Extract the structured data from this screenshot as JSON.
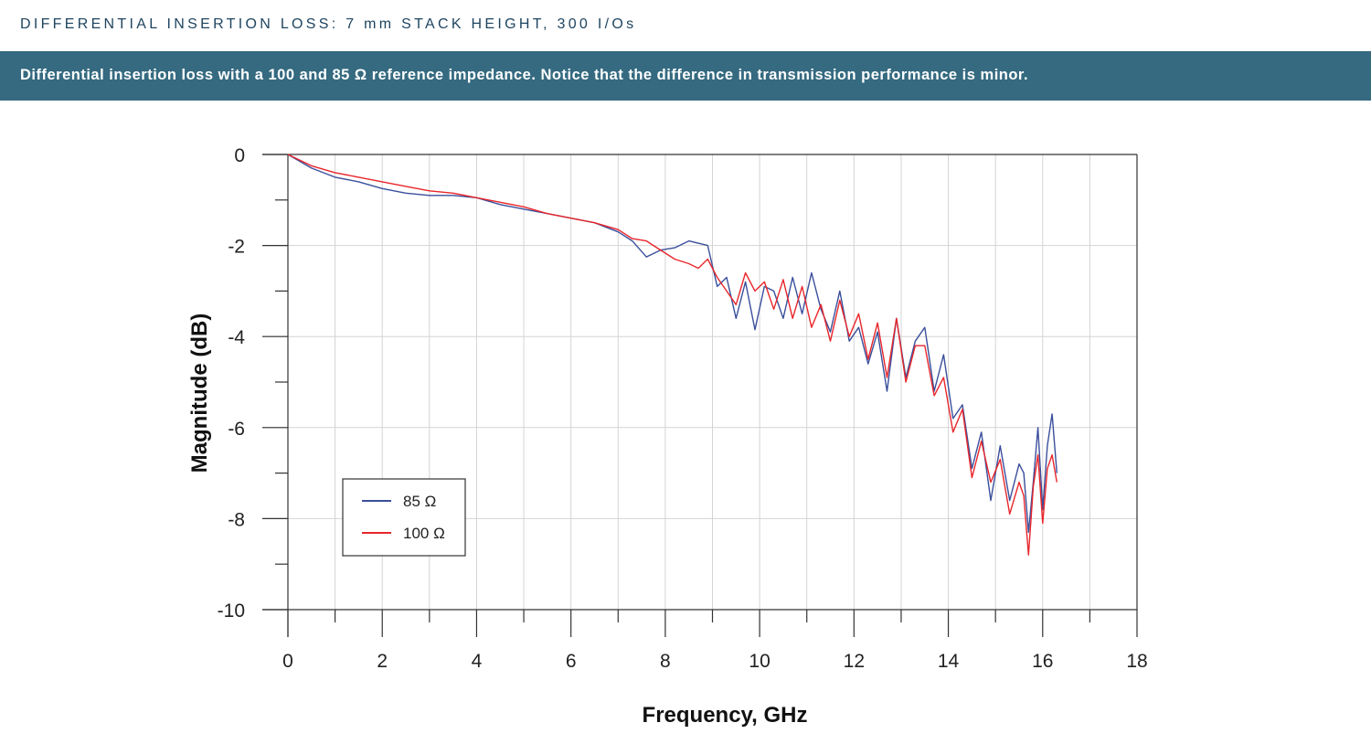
{
  "header": {
    "title": "DIFFERENTIAL INSERTION LOSS:  7 mm STACK HEIGHT, 300 I/Os",
    "caption": "Differential insertion loss with a 100 and 85 Ω reference impedance. Notice that the difference in transmission performance is minor."
  },
  "chart_data": {
    "type": "line",
    "title": "",
    "xlabel": "Frequency, GHz",
    "ylabel": "Magnitude (dB)",
    "xlim": [
      0,
      18
    ],
    "ylim": [
      -10,
      0
    ],
    "xticks": [
      "0",
      "2",
      "4",
      "6",
      "8",
      "10",
      "12",
      "14",
      "16",
      "18"
    ],
    "yticks": [
      "0",
      "-2",
      "-4",
      "-6",
      "-8",
      "-10"
    ],
    "grid": true,
    "legend_position": "lower-left",
    "series": [
      {
        "name": "85 Ω",
        "color": "#3a4f9c",
        "x": [
          0,
          0.5,
          1.0,
          1.5,
          2.0,
          2.5,
          3.0,
          3.5,
          4.0,
          4.5,
          5.0,
          5.5,
          6.0,
          6.5,
          7.0,
          7.3,
          7.6,
          7.9,
          8.2,
          8.5,
          8.7,
          8.9,
          9.1,
          9.3,
          9.5,
          9.7,
          9.9,
          10.1,
          10.3,
          10.5,
          10.7,
          10.9,
          11.1,
          11.3,
          11.5,
          11.7,
          11.9,
          12.1,
          12.3,
          12.5,
          12.7,
          12.9,
          13.1,
          13.3,
          13.5,
          13.7,
          13.9,
          14.1,
          14.3,
          14.5,
          14.7,
          14.9,
          15.1,
          15.3,
          15.5,
          15.6,
          15.7,
          15.8,
          15.9,
          16.0,
          16.1,
          16.2,
          16.3
        ],
        "y": [
          0,
          -0.3,
          -0.5,
          -0.6,
          -0.75,
          -0.85,
          -0.9,
          -0.9,
          -0.95,
          -1.1,
          -1.2,
          -1.3,
          -1.4,
          -1.5,
          -1.7,
          -1.9,
          -2.25,
          -2.1,
          -2.05,
          -1.9,
          -1.95,
          -2.0,
          -2.9,
          -2.7,
          -3.6,
          -2.8,
          -3.85,
          -2.9,
          -3.0,
          -3.6,
          -2.7,
          -3.5,
          -2.6,
          -3.4,
          -3.9,
          -3.0,
          -4.1,
          -3.8,
          -4.6,
          -3.9,
          -5.2,
          -3.6,
          -4.9,
          -4.1,
          -3.8,
          -5.2,
          -4.4,
          -5.8,
          -5.5,
          -6.9,
          -6.1,
          -7.6,
          -6.4,
          -7.6,
          -6.8,
          -7.0,
          -8.3,
          -7.2,
          -6.0,
          -7.8,
          -6.4,
          -5.7,
          -7.0
        ]
      },
      {
        "name": "100 Ω",
        "color": "#e8262b",
        "x": [
          0,
          0.5,
          1.0,
          1.5,
          2.0,
          2.5,
          3.0,
          3.5,
          4.0,
          4.5,
          5.0,
          5.5,
          6.0,
          6.5,
          7.0,
          7.3,
          7.6,
          7.9,
          8.2,
          8.5,
          8.7,
          8.9,
          9.1,
          9.3,
          9.5,
          9.7,
          9.9,
          10.1,
          10.3,
          10.5,
          10.7,
          10.9,
          11.1,
          11.3,
          11.5,
          11.7,
          11.9,
          12.1,
          12.3,
          12.5,
          12.7,
          12.9,
          13.1,
          13.3,
          13.5,
          13.7,
          13.9,
          14.1,
          14.3,
          14.5,
          14.7,
          14.9,
          15.1,
          15.3,
          15.5,
          15.6,
          15.7,
          15.8,
          15.9,
          16.0,
          16.1,
          16.2,
          16.3
        ],
        "y": [
          0,
          -0.25,
          -0.4,
          -0.5,
          -0.6,
          -0.7,
          -0.8,
          -0.85,
          -0.95,
          -1.05,
          -1.15,
          -1.3,
          -1.4,
          -1.5,
          -1.65,
          -1.85,
          -1.9,
          -2.1,
          -2.3,
          -2.4,
          -2.5,
          -2.3,
          -2.7,
          -3.0,
          -3.3,
          -2.6,
          -3.0,
          -2.8,
          -3.4,
          -2.75,
          -3.6,
          -2.9,
          -3.8,
          -3.3,
          -4.1,
          -3.2,
          -4.0,
          -3.5,
          -4.5,
          -3.7,
          -4.9,
          -3.6,
          -5.0,
          -4.2,
          -4.2,
          -5.3,
          -4.9,
          -6.1,
          -5.6,
          -7.1,
          -6.3,
          -7.2,
          -6.7,
          -7.9,
          -7.2,
          -7.5,
          -8.8,
          -7.3,
          -6.6,
          -8.1,
          -6.9,
          -6.6,
          -7.2
        ]
      }
    ]
  }
}
